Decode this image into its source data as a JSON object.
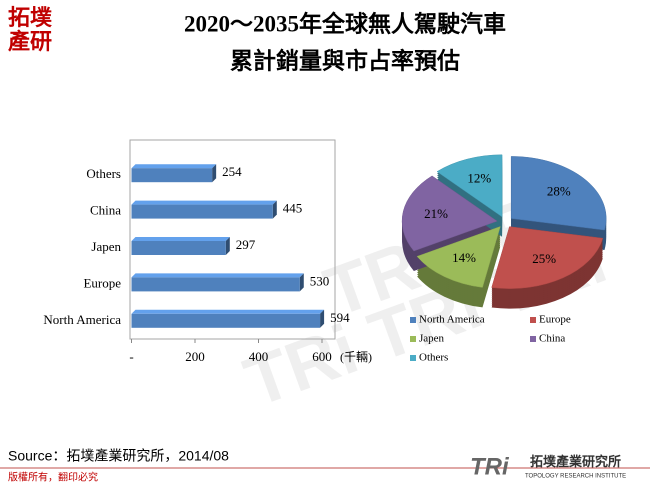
{
  "title_lines": [
    "2020～2035年全球無人駕駛汽車",
    "累計銷量與市占率預估"
  ],
  "logo_lines": [
    "拓墣",
    "產研"
  ],
  "source": "Source：拓墣產業研究所，2014/08",
  "copyright": "版權所有，翻印必究",
  "brand": {
    "mark": "TRi",
    "name": "拓墣產業研究所",
    "subtitle": "TOPOLOGY RESEARCH INSTITUTE"
  },
  "chart_data": [
    {
      "type": "hbar",
      "categories": [
        "Others",
        "China",
        "Japen",
        "Europe",
        "North America"
      ],
      "values": [
        254,
        445,
        297,
        530,
        594
      ],
      "color": "#4f81bd",
      "xlim": [
        0,
        600
      ],
      "xticks": [
        {
          "value": 0,
          "label": "-"
        },
        200,
        400,
        600
      ],
      "x_unit": "(千輛)",
      "grid": false
    },
    {
      "type": "pie",
      "categories": [
        "North America",
        "Europe",
        "Japen",
        "China",
        "Others"
      ],
      "values": [
        28,
        25,
        14,
        21,
        12
      ],
      "value_labels": [
        "28%",
        "25%",
        "14%",
        "21%",
        "12%"
      ],
      "colors": [
        "#4f81bd",
        "#c0504d",
        "#9bbb59",
        "#8064a2",
        "#4bacc6"
      ],
      "legend": "bottom"
    }
  ]
}
